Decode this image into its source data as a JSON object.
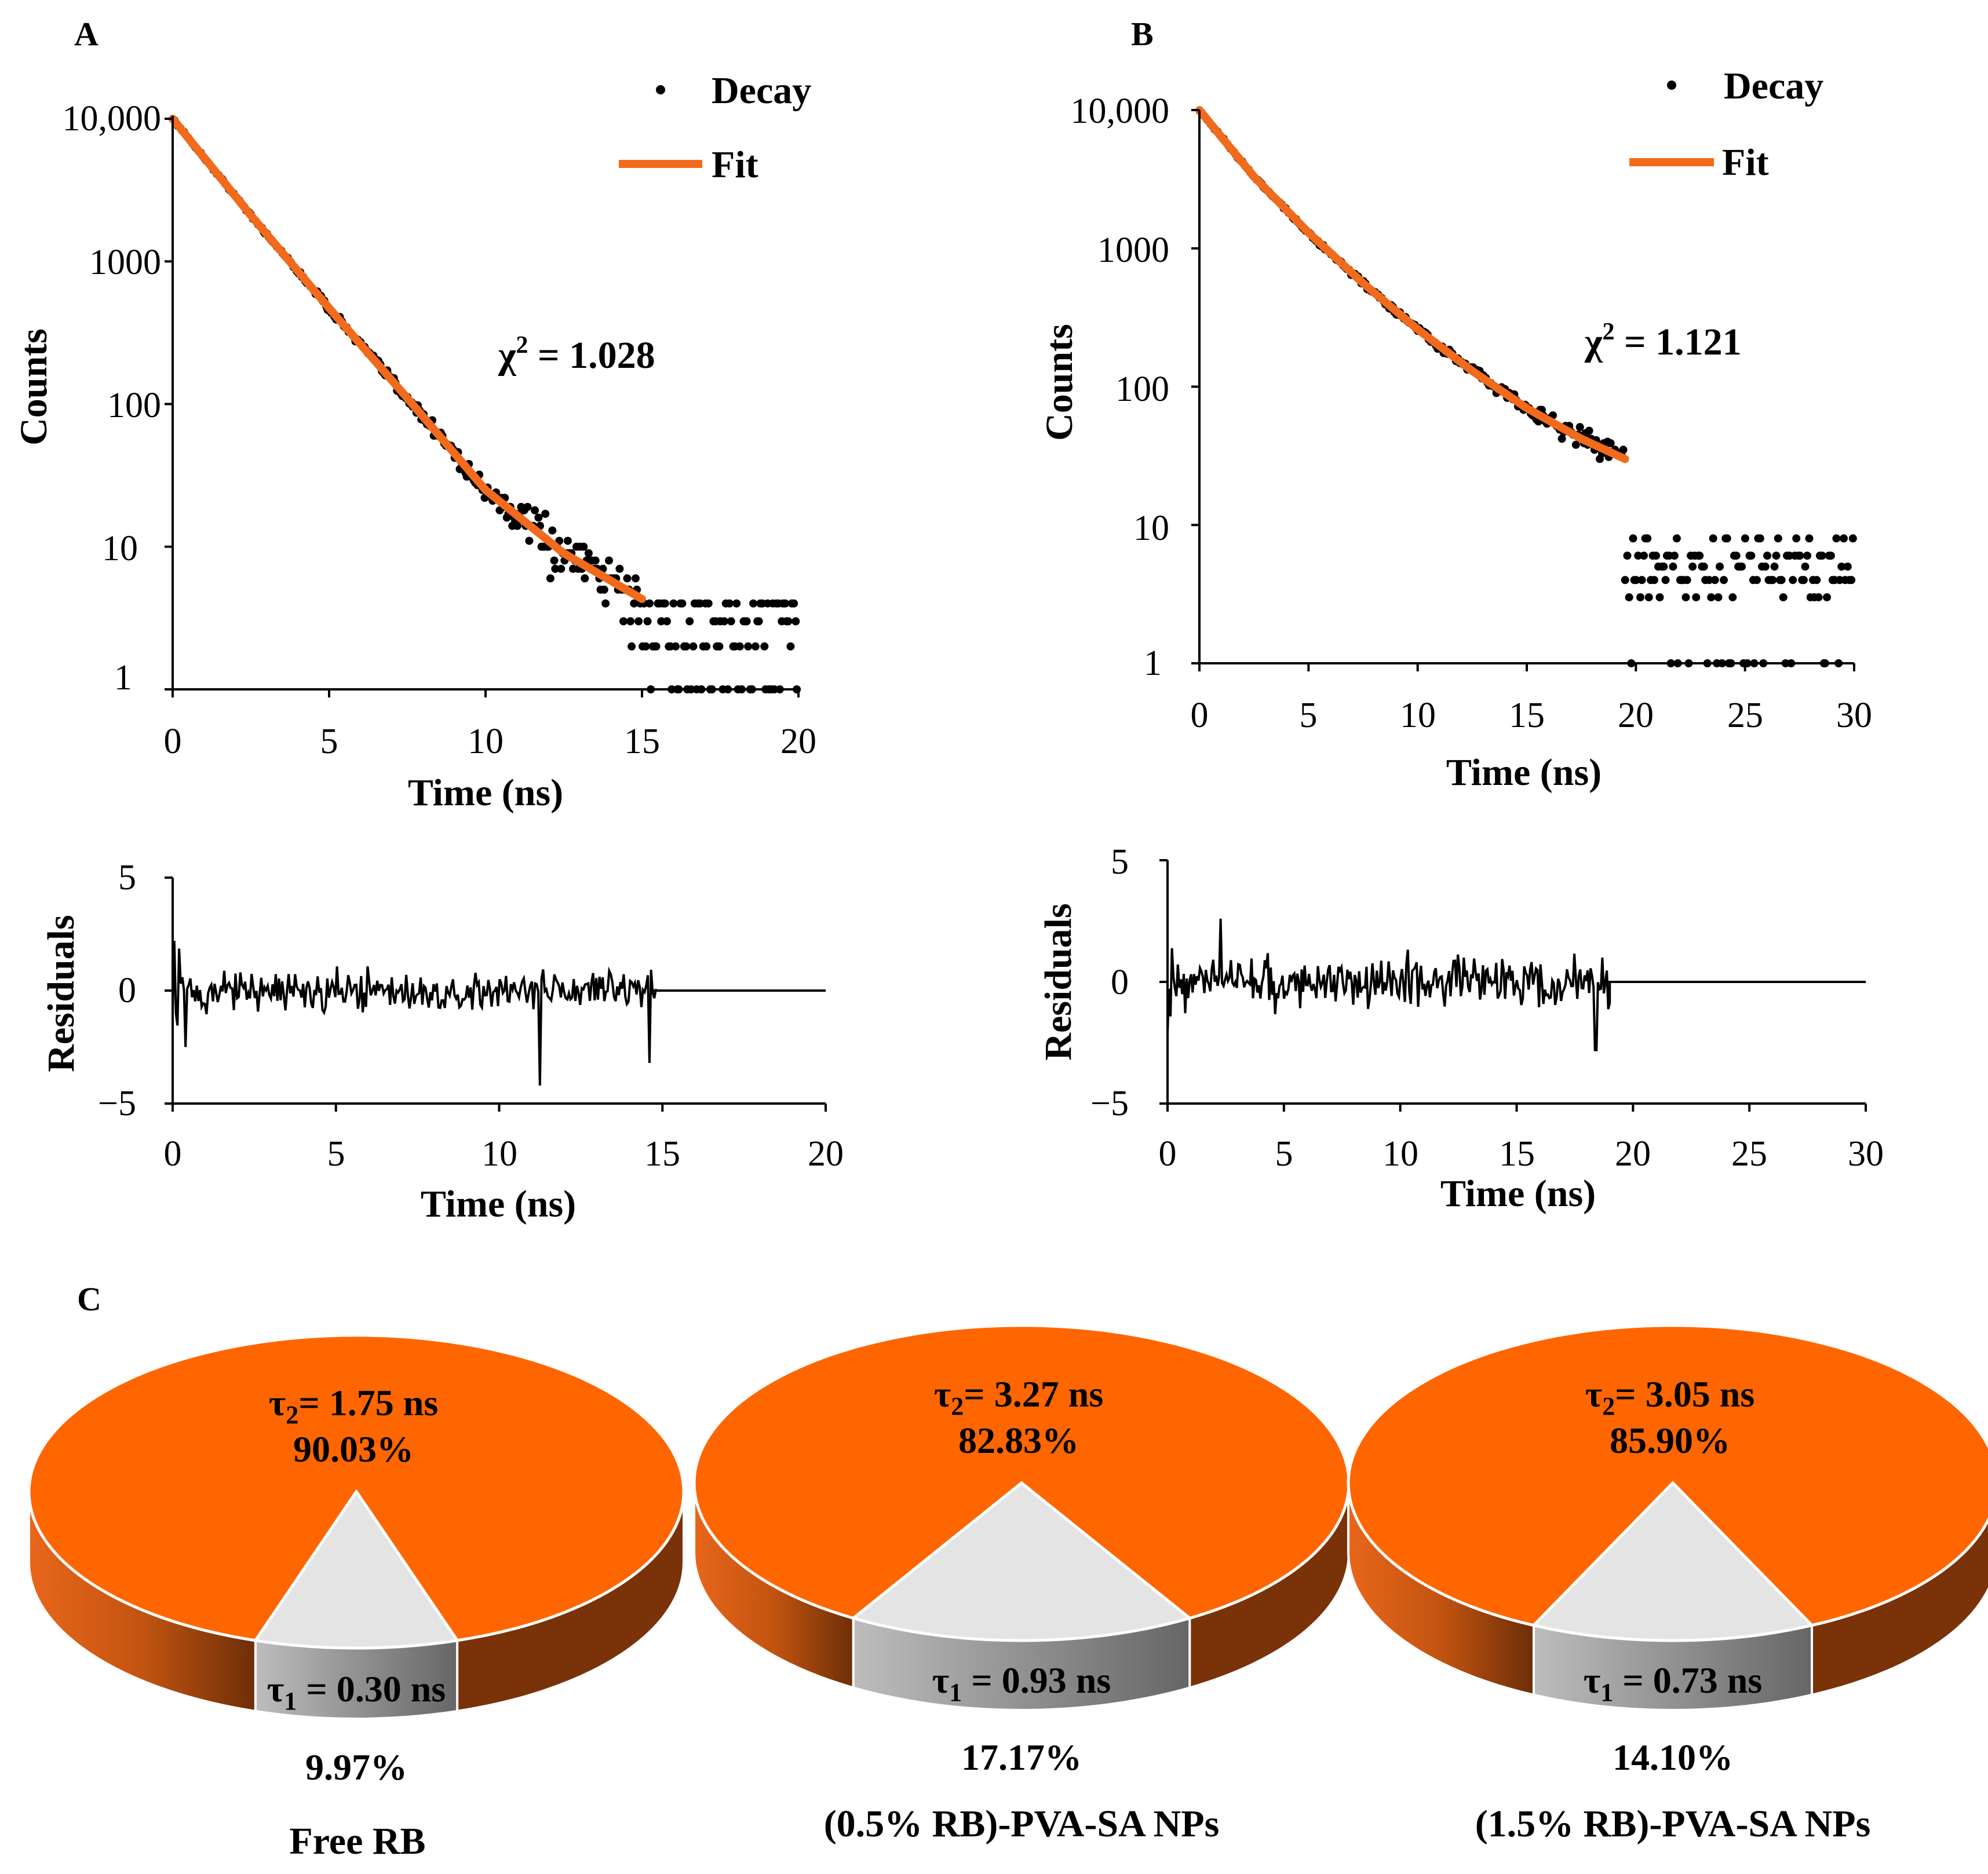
{
  "colors": {
    "decay": "#000000",
    "fit": "#f26a1b",
    "pie_main": "#ff6600",
    "pie_main_side": "#c05010",
    "pie_minor": "#e4e4e4",
    "pie_minor_side": "#8a8a8a"
  },
  "panels": {
    "a": {
      "letter": "A",
      "decay_chart": {
        "type": "scatter",
        "yscale": "log",
        "ylim": [
          1,
          10000
        ],
        "xlim": [
          0,
          20
        ],
        "xticks": [
          "0",
          "5",
          "10",
          "15",
          "20"
        ],
        "yticks": [
          "10,000",
          "1000",
          "100",
          "10",
          "1"
        ],
        "xlabel": "Time (ns)",
        "ylabel": "Counts",
        "legend": {
          "decay": "Decay",
          "fit": "Fit",
          "position": "top-right"
        },
        "chi_symbol": "χ",
        "chi_text": " = 1.028",
        "series": [
          {
            "name": "Decay",
            "tau_ns": 1.6,
            "fit_end_ns": 15,
            "data_end_ns": 20,
            "tail_level": 2.6
          },
          {
            "name": "Fit",
            "fit_points": [
              [
                0,
                10000
              ],
              [
                2.5,
                2100
              ],
              [
                5,
                470
              ],
              [
                7.5,
                110
              ],
              [
                10,
                25
              ],
              [
                12.5,
                9
              ],
              [
                15,
                4.3
              ]
            ]
          }
        ]
      },
      "residual_chart": {
        "type": "line",
        "xlim": [
          0,
          20
        ],
        "ylim": [
          -5,
          5
        ],
        "xticks": [
          "0",
          "5",
          "10",
          "15",
          "20"
        ],
        "yticks": [
          "5",
          "0",
          "−5"
        ],
        "xlabel": "Time (ns)",
        "ylabel": "Residuals",
        "noise_end_ns": 14.8,
        "amplitude": 0.9
      }
    },
    "b": {
      "letter": "B",
      "decay_chart": {
        "type": "scatter",
        "yscale": "log",
        "ylim": [
          1,
          10000
        ],
        "xlim": [
          0,
          30
        ],
        "xticks": [
          "0",
          "5",
          "10",
          "15",
          "20",
          "25",
          "30"
        ],
        "yticks": [
          "10,000",
          "1000",
          "100",
          "10",
          "1"
        ],
        "xlabel": "Time (ns)",
        "ylabel": "Counts",
        "legend": {
          "decay": "Decay",
          "fit": "Fit",
          "position": "top-right"
        },
        "chi_symbol": "χ",
        "chi_text": " = 1.121",
        "series": [
          {
            "name": "Decay",
            "tau_ns": 2.9,
            "fit_end_ns": 19.5,
            "data_end_ns": 30,
            "tail_level": 4.5
          },
          {
            "name": "Fit",
            "fit_points": [
              [
                0,
                10000
              ],
              [
                2.5,
                3300
              ],
              [
                5,
                1300
              ],
              [
                7.5,
                560
              ],
              [
                10,
                260
              ],
              [
                12.5,
                130
              ],
              [
                15,
                70
              ],
              [
                17.5,
                42
              ],
              [
                19.5,
                30
              ]
            ]
          }
        ]
      },
      "residual_chart": {
        "type": "line",
        "xlim": [
          0,
          30
        ],
        "ylim": [
          -5,
          5
        ],
        "xticks": [
          "0",
          "5",
          "10",
          "15",
          "20",
          "25",
          "30"
        ],
        "yticks": [
          "5",
          "0",
          "−5"
        ],
        "xlabel": "Time (ns)",
        "ylabel": "Residuals",
        "noise_end_ns": 19,
        "amplitude": 1.0
      }
    },
    "c": {
      "letter": "C"
    }
  },
  "chart_data": {
    "type": "pie",
    "pies": [
      {
        "caption": "Free RB",
        "tau2_value": "= 1.75 ns",
        "tau2_percent": "90.03%",
        "tau1_value": "= 0.30 ns",
        "tau1_percent": "9.97%",
        "values": [
          90.03,
          9.97
        ]
      },
      {
        "caption": "(0.5% RB)-PVA-SA NPs",
        "tau2_value": "= 3.27 ns",
        "tau2_percent": "82.83%",
        "tau1_value": "= 0.93 ns",
        "tau1_percent": "17.17%",
        "values": [
          82.83,
          17.17
        ]
      },
      {
        "caption": "(1.5% RB)-PVA-SA NPs",
        "tau2_value": "= 3.05 ns",
        "tau2_percent": "85.90%",
        "tau1_value": "= 0.73 ns",
        "tau1_percent": "14.10%",
        "values": [
          85.9,
          14.1
        ]
      }
    ],
    "tau_symbol": "τ",
    "tau1_sub": "1",
    "tau2_sub": "2"
  }
}
